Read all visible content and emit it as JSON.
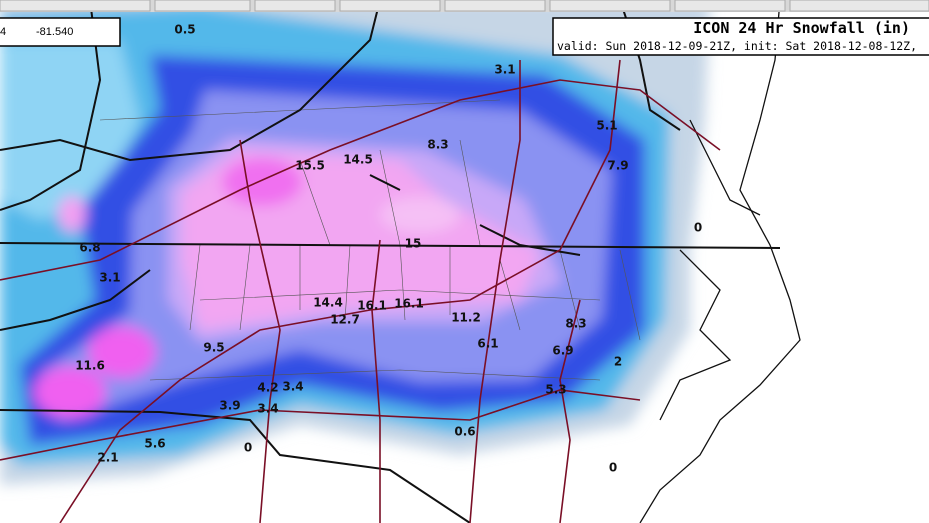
{
  "coordinate_box": {
    "latitude": "4",
    "longitude": "-81.540"
  },
  "header": {
    "title": "ICON 24 Hr Snowfall (in)",
    "subtitle": "valid: Sun 2018-12-09-21Z, init: Sat 2018-12-08-12Z,"
  },
  "map_labels": [
    "0.5",
    "3.1",
    "8.3",
    "5.1",
    "15.5",
    "14.5",
    "7.9",
    "0",
    "15",
    "6.8",
    "3.1",
    "14.4",
    "16.1",
    "16.1",
    "12.7",
    "11.2",
    "8.3",
    "9.5",
    "6.9",
    "2",
    "11.6",
    "6.1",
    "4.2",
    "3.4",
    "5.3",
    "3.9",
    "3.4",
    "0.6",
    "5.6",
    "0",
    "2.1",
    "0"
  ]
}
